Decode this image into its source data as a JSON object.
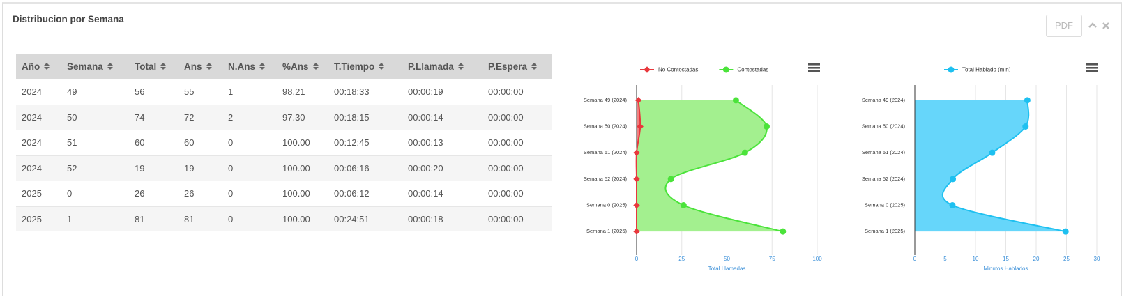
{
  "panel": {
    "title": "Distribucion por Semana",
    "buttons": [
      "PDF"
    ]
  },
  "table": {
    "columns": [
      "Año",
      "Semana",
      "Total",
      "Ans",
      "N.Ans",
      "%Ans",
      "T.Tiempo",
      "P.Llamada",
      "P.Espera"
    ],
    "rows": [
      [
        "2024",
        "49",
        "56",
        "55",
        "1",
        "98.21",
        "00:18:33",
        "00:00:19",
        "00:00:00"
      ],
      [
        "2024",
        "50",
        "74",
        "72",
        "2",
        "97.30",
        "00:18:15",
        "00:00:14",
        "00:00:00"
      ],
      [
        "2024",
        "51",
        "60",
        "60",
        "0",
        "100.00",
        "00:12:45",
        "00:00:13",
        "00:00:00"
      ],
      [
        "2024",
        "52",
        "19",
        "19",
        "0",
        "100.00",
        "00:06:16",
        "00:00:20",
        "00:00:00"
      ],
      [
        "2025",
        "0",
        "26",
        "26",
        "0",
        "100.00",
        "00:06:12",
        "00:00:14",
        "00:00:00"
      ],
      [
        "2025",
        "1",
        "81",
        "81",
        "0",
        "100.00",
        "00:24:51",
        "00:00:18",
        "00:00:00"
      ]
    ]
  },
  "chart_data": [
    {
      "type": "area",
      "orientation": "horizontal",
      "categories": [
        "Semana 49 (2024)",
        "Semana 50 (2024)",
        "Semana 51 (2024)",
        "Semana 52 (2024)",
        "Semana 0 (2025)",
        "Semana 1 (2025)"
      ],
      "series": [
        {
          "name": "No Contestadas",
          "color": "#e8383d",
          "fill": "#f08080",
          "marker": "diamond",
          "values": [
            1,
            2,
            0,
            0,
            0,
            0
          ]
        },
        {
          "name": "Contestadas",
          "color": "#4be33a",
          "fill": "#a3f08f",
          "marker": "circle",
          "values": [
            55,
            72,
            60,
            19,
            26,
            81
          ]
        }
      ],
      "xlabel": "Total Llamadas",
      "xlim": [
        0,
        100
      ],
      "xticks": [
        0,
        25,
        50,
        75,
        100
      ],
      "grid": true,
      "legend": "top"
    },
    {
      "type": "area",
      "orientation": "horizontal",
      "categories": [
        "Semana 49 (2024)",
        "Semana 50 (2024)",
        "Semana 51 (2024)",
        "Semana 52 (2024)",
        "Semana 0 (2025)",
        "Semana 1 (2025)"
      ],
      "series": [
        {
          "name": "Total Hablado (min)",
          "color": "#1ec0f0",
          "fill": "#66d6fa",
          "marker": "circle",
          "values": [
            18.55,
            18.25,
            12.75,
            6.27,
            6.2,
            24.85
          ]
        }
      ],
      "xlabel": "Minutos Hablados",
      "xlim": [
        0,
        30
      ],
      "xticks": [
        0,
        5,
        10,
        15,
        20,
        25,
        30
      ],
      "grid": true,
      "legend": "top"
    }
  ]
}
